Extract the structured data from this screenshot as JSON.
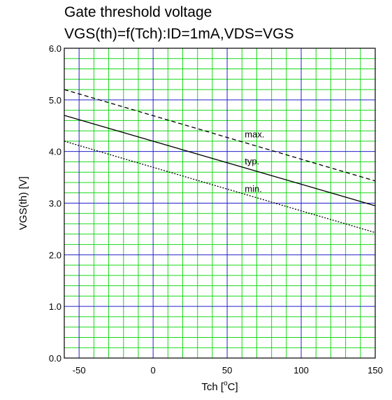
{
  "chart_data": {
    "type": "line",
    "title": "Gate threshold voltage",
    "subtitle": "VGS(th)=f(Tch):ID=1mA,VDS=VGS",
    "xlabel_main": "Tch [",
    "xlabel_sup": "o",
    "xlabel_tail": "C]",
    "ylabel": "VGS(th) [V]",
    "xlim": [
      -60,
      150
    ],
    "ylim": [
      0,
      6
    ],
    "xticks": [
      -50,
      0,
      50,
      100,
      150
    ],
    "xtick_labels": [
      "-50",
      "0",
      "50",
      "100",
      "150"
    ],
    "yticks": [
      0,
      1,
      2,
      3,
      4,
      5,
      6
    ],
    "ytick_labels": [
      "0.0",
      "1.0",
      "2.0",
      "3.0",
      "4.0",
      "5.0",
      "6.0"
    ],
    "minor_x_step": 10,
    "minor_y_step": 0.2,
    "grid": true,
    "series": [
      {
        "name": "max.",
        "x": [
          -60,
          150
        ],
        "y": [
          5.2,
          3.43
        ],
        "dash": "dashed",
        "label_at": [
          60,
          4.27
        ]
      },
      {
        "name": "typ.",
        "x": [
          -60,
          150
        ],
        "y": [
          4.7,
          2.95
        ],
        "dash": "solid",
        "label_at": [
          60,
          3.75
        ]
      },
      {
        "name": "min.",
        "x": [
          -60,
          150
        ],
        "y": [
          4.2,
          2.43
        ],
        "dash": "dotted",
        "label_at": [
          60,
          3.22
        ]
      }
    ],
    "colors": {
      "major_grid": "#2020c8",
      "minor_grid": "#18d818",
      "line": "#000000"
    }
  }
}
